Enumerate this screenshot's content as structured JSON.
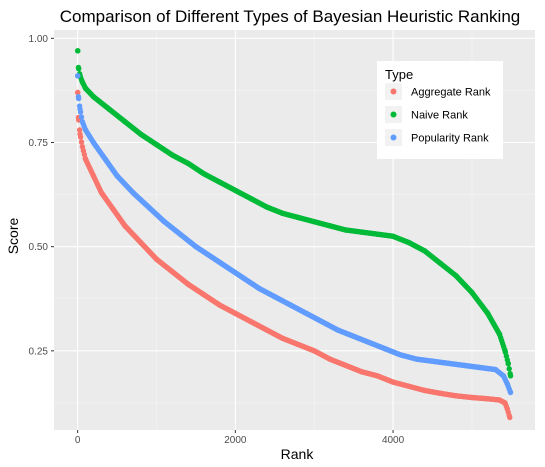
{
  "chart_data": {
    "type": "scatter",
    "title": "Comparison of Different Types of Bayesian Heuristic Ranking",
    "xlabel": "Rank",
    "ylabel": "Score",
    "xlim": [
      -300,
      5800
    ],
    "ylim": [
      0.06,
      1.02
    ],
    "x_ticks": [
      0,
      2000,
      4000
    ],
    "x_tick_labels": [
      "0",
      "2000",
      "4000"
    ],
    "y_ticks": [
      0.25,
      0.5,
      0.75,
      1.0
    ],
    "y_tick_labels": [
      "0.25",
      "0.50",
      "0.75",
      "1.00"
    ],
    "grid": true,
    "legend": {
      "title": "Type",
      "placement": "top-right"
    },
    "series": [
      {
        "name": "Aggregate Rank",
        "color": "#F8766D",
        "points": [
          [
            1,
            0.87
          ],
          [
            10,
            0.81
          ],
          [
            30,
            0.77
          ],
          [
            60,
            0.74
          ],
          [
            100,
            0.71
          ],
          [
            200,
            0.67
          ],
          [
            300,
            0.63
          ],
          [
            450,
            0.59
          ],
          [
            600,
            0.55
          ],
          [
            800,
            0.51
          ],
          [
            1000,
            0.47
          ],
          [
            1200,
            0.44
          ],
          [
            1400,
            0.41
          ],
          [
            1600,
            0.385
          ],
          [
            1800,
            0.36
          ],
          [
            2000,
            0.34
          ],
          [
            2200,
            0.32
          ],
          [
            2400,
            0.3
          ],
          [
            2600,
            0.28
          ],
          [
            2800,
            0.265
          ],
          [
            3000,
            0.25
          ],
          [
            3200,
            0.23
          ],
          [
            3400,
            0.215
          ],
          [
            3600,
            0.2
          ],
          [
            3800,
            0.19
          ],
          [
            4000,
            0.175
          ],
          [
            4200,
            0.165
          ],
          [
            4400,
            0.155
          ],
          [
            4600,
            0.148
          ],
          [
            4800,
            0.142
          ],
          [
            5000,
            0.138
          ],
          [
            5200,
            0.135
          ],
          [
            5350,
            0.132
          ],
          [
            5420,
            0.125
          ],
          [
            5450,
            0.11
          ],
          [
            5480,
            0.09
          ]
        ]
      },
      {
        "name": "Naive Rank",
        "color": "#00BA38",
        "points": [
          [
            1,
            0.97
          ],
          [
            10,
            0.93
          ],
          [
            30,
            0.91
          ],
          [
            60,
            0.895
          ],
          [
            100,
            0.88
          ],
          [
            200,
            0.86
          ],
          [
            400,
            0.83
          ],
          [
            600,
            0.8
          ],
          [
            800,
            0.77
          ],
          [
            1000,
            0.745
          ],
          [
            1200,
            0.72
          ],
          [
            1400,
            0.7
          ],
          [
            1600,
            0.675
          ],
          [
            1800,
            0.655
          ],
          [
            2000,
            0.635
          ],
          [
            2200,
            0.615
          ],
          [
            2400,
            0.595
          ],
          [
            2600,
            0.58
          ],
          [
            2800,
            0.57
          ],
          [
            3000,
            0.56
          ],
          [
            3200,
            0.55
          ],
          [
            3400,
            0.54
          ],
          [
            3600,
            0.535
          ],
          [
            3800,
            0.53
          ],
          [
            4000,
            0.525
          ],
          [
            4200,
            0.51
          ],
          [
            4400,
            0.49
          ],
          [
            4600,
            0.46
          ],
          [
            4800,
            0.43
          ],
          [
            5000,
            0.39
          ],
          [
            5200,
            0.34
          ],
          [
            5350,
            0.29
          ],
          [
            5420,
            0.25
          ],
          [
            5460,
            0.22
          ],
          [
            5490,
            0.19
          ]
        ]
      },
      {
        "name": "Popularity Rank",
        "color": "#619CFF",
        "points": [
          [
            1,
            0.91
          ],
          [
            10,
            0.86
          ],
          [
            30,
            0.83
          ],
          [
            60,
            0.8
          ],
          [
            100,
            0.78
          ],
          [
            200,
            0.75
          ],
          [
            350,
            0.71
          ],
          [
            500,
            0.67
          ],
          [
            700,
            0.63
          ],
          [
            900,
            0.595
          ],
          [
            1100,
            0.56
          ],
          [
            1300,
            0.53
          ],
          [
            1500,
            0.5
          ],
          [
            1700,
            0.475
          ],
          [
            1900,
            0.45
          ],
          [
            2100,
            0.425
          ],
          [
            2300,
            0.4
          ],
          [
            2500,
            0.38
          ],
          [
            2700,
            0.36
          ],
          [
            2900,
            0.34
          ],
          [
            3100,
            0.32
          ],
          [
            3300,
            0.3
          ],
          [
            3500,
            0.285
          ],
          [
            3700,
            0.27
          ],
          [
            3900,
            0.255
          ],
          [
            4100,
            0.24
          ],
          [
            4300,
            0.23
          ],
          [
            4500,
            0.225
          ],
          [
            4700,
            0.22
          ],
          [
            4900,
            0.215
          ],
          [
            5100,
            0.21
          ],
          [
            5300,
            0.205
          ],
          [
            5400,
            0.19
          ],
          [
            5450,
            0.17
          ],
          [
            5490,
            0.15
          ]
        ]
      }
    ]
  }
}
